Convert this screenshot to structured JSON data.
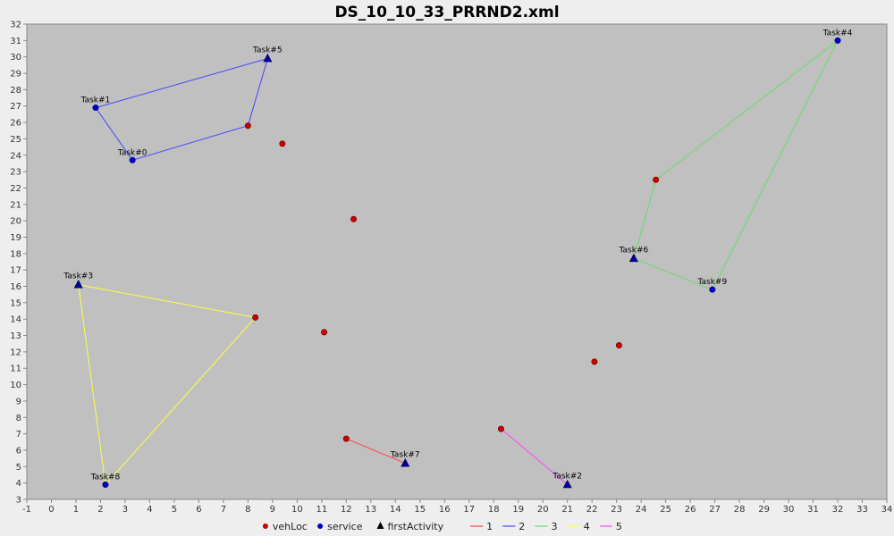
{
  "chart_data": {
    "type": "scatter",
    "title": "DS_10_10_33_PRRND2.xml",
    "xlim": [
      -1,
      34
    ],
    "ylim": [
      3,
      32
    ],
    "x_ticks": [
      -1,
      0,
      1,
      2,
      3,
      4,
      5,
      6,
      7,
      8,
      9,
      10,
      11,
      12,
      13,
      14,
      15,
      16,
      17,
      18,
      19,
      20,
      21,
      22,
      23,
      24,
      25,
      26,
      27,
      28,
      29,
      30,
      31,
      32,
      33,
      34
    ],
    "y_ticks": [
      3,
      4,
      5,
      6,
      7,
      8,
      9,
      10,
      11,
      12,
      13,
      14,
      15,
      16,
      17,
      18,
      19,
      20,
      21,
      22,
      23,
      24,
      25,
      26,
      27,
      28,
      29,
      30,
      31,
      32
    ],
    "grid": false,
    "legend_placement": "bottom",
    "legend": [
      {
        "label": "vehLoc",
        "kind": "circle",
        "color": "#cc0000"
      },
      {
        "label": "service",
        "kind": "circle",
        "color": "#0000cc"
      },
      {
        "label": "firstActivity",
        "kind": "triangle",
        "color": "#000000"
      },
      {
        "label": "1",
        "kind": "line",
        "color": "#ff4444"
      },
      {
        "label": "2",
        "kind": "line",
        "color": "#4444ff"
      },
      {
        "label": "3",
        "kind": "line",
        "color": "#66dd66"
      },
      {
        "label": "4",
        "kind": "line",
        "color": "#ffff44"
      },
      {
        "label": "5",
        "kind": "line",
        "color": "#ff44ff"
      }
    ],
    "vehLoc": [
      {
        "x": 8,
        "y": 25.8
      },
      {
        "x": 9.4,
        "y": 24.7
      },
      {
        "x": 12.3,
        "y": 20.1
      },
      {
        "x": 24.6,
        "y": 22.5
      },
      {
        "x": 8.3,
        "y": 14.1
      },
      {
        "x": 11.1,
        "y": 13.2
      },
      {
        "x": 23.1,
        "y": 12.4
      },
      {
        "x": 22.1,
        "y": 11.4
      },
      {
        "x": 12.0,
        "y": 6.7
      },
      {
        "x": 18.3,
        "y": 7.3
      }
    ],
    "service": [
      {
        "label": "Task#1",
        "x": 1.8,
        "y": 26.9
      },
      {
        "label": "Task#0",
        "x": 3.3,
        "y": 23.7
      },
      {
        "label": "Task#4",
        "x": 32.0,
        "y": 31.0
      },
      {
        "label": "Task#9",
        "x": 26.9,
        "y": 15.8
      },
      {
        "label": "Task#8",
        "x": 2.2,
        "y": 3.9
      }
    ],
    "firstActivity": [
      {
        "label": "Task#5",
        "x": 8.8,
        "y": 29.9
      },
      {
        "label": "Task#6",
        "x": 23.7,
        "y": 17.7
      },
      {
        "label": "Task#3",
        "x": 1.1,
        "y": 16.1
      },
      {
        "label": "Task#7",
        "x": 14.4,
        "y": 5.2
      },
      {
        "label": "Task#2",
        "x": 21.0,
        "y": 3.9
      }
    ],
    "series": [
      {
        "name": "1",
        "color": "#ff4444",
        "points": [
          [
            12.0,
            6.7
          ],
          [
            14.4,
            5.2
          ]
        ]
      },
      {
        "name": "2",
        "color": "#4444ff",
        "points": [
          [
            8,
            25.8
          ],
          [
            3.3,
            23.7
          ],
          [
            1.8,
            26.9
          ],
          [
            8.8,
            29.9
          ],
          [
            8,
            25.8
          ]
        ]
      },
      {
        "name": "3",
        "color": "#66dd66",
        "points": [
          [
            24.6,
            22.5
          ],
          [
            32.0,
            31.0
          ],
          [
            26.9,
            15.8
          ],
          [
            23.7,
            17.7
          ],
          [
            24.6,
            22.5
          ]
        ]
      },
      {
        "name": "4",
        "color": "#ffff44",
        "points": [
          [
            8.3,
            14.1
          ],
          [
            1.1,
            16.1
          ],
          [
            2.2,
            3.9
          ],
          [
            8.3,
            14.1
          ]
        ]
      },
      {
        "name": "5",
        "color": "#ff44ff",
        "points": [
          [
            18.3,
            7.3
          ],
          [
            21.0,
            3.9
          ]
        ]
      }
    ]
  },
  "colors": {
    "page_background": "#eeeeee",
    "plot_background": "#c0c0c0",
    "axis": "#888888",
    "vehLoc_fill": "#cc0000",
    "service_fill": "#0000cc",
    "firstActivity_fill": "#0000aa"
  }
}
